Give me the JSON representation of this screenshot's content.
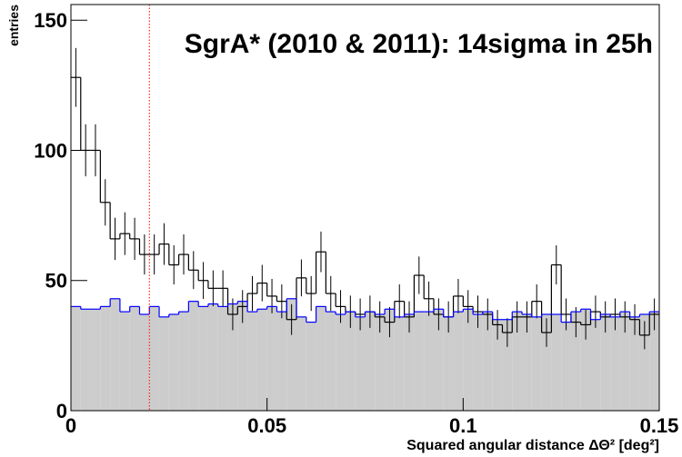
{
  "chart_data": {
    "type": "histogram",
    "title": "SgrA* (2010 & 2011): 14sigma in 25h",
    "x_label": "Squared angular distance ΔΘ² [deg²]",
    "y_label": "entries",
    "bins": [
      0,
      0.0025,
      0.005,
      0.0075,
      0.01,
      0.0125,
      0.015,
      0.0175,
      0.02,
      0.0225,
      0.025,
      0.0275,
      0.03,
      0.0325,
      0.035,
      0.0375,
      0.04,
      0.0425,
      0.045,
      0.0475,
      0.05,
      0.0525,
      0.055,
      0.0575,
      0.06,
      0.0625,
      0.065,
      0.0675,
      0.07,
      0.0725,
      0.075,
      0.0775,
      0.08,
      0.0825,
      0.085,
      0.0875,
      0.09,
      0.0925,
      0.095,
      0.0975,
      0.1,
      0.1025,
      0.105,
      0.1075,
      0.11,
      0.1125,
      0.115,
      0.1175,
      0.12,
      0.1225,
      0.125,
      0.1275,
      0.13,
      0.1325,
      0.135,
      0.1375,
      0.14,
      0.1425,
      0.145,
      0.1475,
      0.15
    ],
    "series": [
      {
        "color": "#000000",
        "values": [
          128,
          100,
          100,
          80,
          66,
          68,
          66,
          60,
          60,
          64,
          56,
          60,
          54,
          50,
          47,
          47,
          37,
          40,
          45,
          49,
          44,
          42,
          35,
          51,
          45,
          61,
          45,
          40,
          38,
          37,
          38,
          36,
          34,
          42,
          36,
          52,
          43,
          37,
          36,
          44,
          40,
          38,
          37,
          33,
          30,
          36,
          36,
          42,
          30,
          56,
          37,
          34,
          33,
          38,
          36,
          37,
          36,
          35,
          29,
          37
        ],
        "errors": [
          11.3,
          10,
          10,
          8.9,
          8.1,
          8.2,
          8.1,
          7.7,
          7.7,
          8,
          7.5,
          7.7,
          7.3,
          7.1,
          6.9,
          6.9,
          6.1,
          6.3,
          6.7,
          7,
          6.6,
          6.5,
          5.9,
          7.1,
          6.7,
          7.8,
          6.7,
          6.3,
          6.2,
          6.1,
          6.2,
          6,
          5.8,
          6.5,
          6,
          7.2,
          6.6,
          6.1,
          6,
          6.6,
          6.3,
          6.2,
          6.1,
          5.7,
          5.5,
          6,
          6,
          6.5,
          5.5,
          7.5,
          6.1,
          5.8,
          5.7,
          6.2,
          6,
          6.1,
          6,
          5.9,
          5.4,
          6.1
        ]
      },
      {
        "color": "#0000ff",
        "fill": "#cccccc",
        "values": [
          40,
          39,
          39,
          40,
          43,
          38,
          40,
          37,
          40,
          36,
          37,
          38,
          42,
          40,
          41,
          40,
          41,
          42,
          38,
          39,
          40,
          38,
          43,
          36,
          34,
          40,
          38,
          37,
          38,
          36,
          38,
          37,
          39,
          36,
          37,
          38,
          38,
          39,
          36,
          38,
          39,
          37,
          38,
          35,
          35,
          38,
          37,
          36,
          37,
          37,
          34,
          38,
          39,
          35,
          37,
          36,
          38,
          36,
          37,
          38
        ]
      }
    ],
    "reference_line": {
      "x": 0.02,
      "color": "#ff0000"
    },
    "xlim": [
      0,
      0.15
    ],
    "xticks": [
      0,
      0.05,
      0.1,
      0.15
    ],
    "ylim": [
      0,
      156
    ],
    "yticks": [
      0,
      50,
      100,
      150
    ]
  }
}
